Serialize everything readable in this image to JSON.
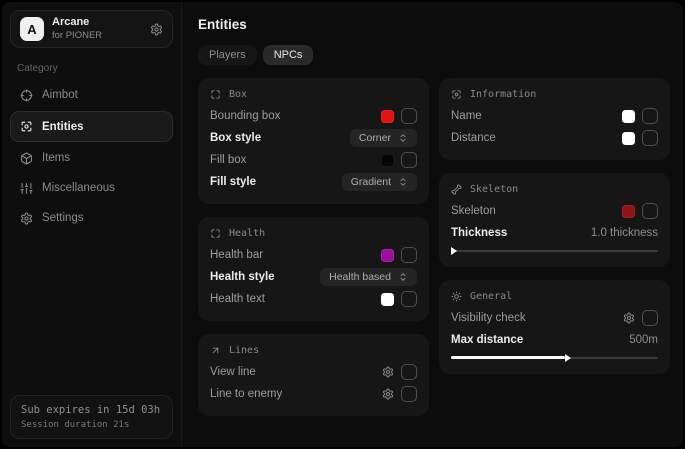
{
  "sidebar": {
    "brand": {
      "logo_letter": "A",
      "title": "Arcane",
      "subtitle": "for PIONER"
    },
    "category_label": "Category",
    "items": [
      {
        "label": "Aimbot"
      },
      {
        "label": "Entities"
      },
      {
        "label": "Items"
      },
      {
        "label": "Miscellaneous"
      },
      {
        "label": "Settings"
      }
    ],
    "footer": {
      "line1": "Sub expires in 15d 03h",
      "line2": "Session duration 21s"
    }
  },
  "main": {
    "title": "Entities",
    "tabs": [
      {
        "label": "Players"
      },
      {
        "label": "NPCs"
      }
    ],
    "cards": {
      "box": {
        "title": "Box",
        "rows": [
          {
            "label": "Bounding box",
            "color": "#e31111",
            "checked": false
          },
          {
            "label": "Box style",
            "value": "Corner"
          },
          {
            "label": "Fill box",
            "color": "#050505",
            "checked": false
          },
          {
            "label": "Fill style",
            "value": "Gradient"
          }
        ]
      },
      "health": {
        "title": "Health",
        "rows": [
          {
            "label": "Health bar",
            "color": "#9c0f9c",
            "checked": false
          },
          {
            "label": "Health style",
            "value": "Health based"
          },
          {
            "label": "Health text",
            "color": "#ffffff",
            "checked": false
          }
        ]
      },
      "lines": {
        "title": "Lines",
        "rows": [
          {
            "label": "View line",
            "checked": false
          },
          {
            "label": "Line to enemy",
            "checked": false
          }
        ]
      },
      "information": {
        "title": "Information",
        "rows": [
          {
            "label": "Name",
            "color": "#ffffff",
            "checked": false
          },
          {
            "label": "Distance",
            "color": "#ffffff",
            "checked": false
          }
        ]
      },
      "skeleton": {
        "title": "Skeleton",
        "rows": [
          {
            "label": "Skeleton",
            "color": "#8e1414",
            "checked": false
          }
        ],
        "slider": {
          "label": "Thickness",
          "value": "1.0 thickness",
          "fill_pct": 0
        }
      },
      "general": {
        "title": "General",
        "rows": [
          {
            "label": "Visibility check",
            "checked": false
          }
        ],
        "slider": {
          "label": "Max distance",
          "value": "500m",
          "fill_pct": 55
        }
      }
    }
  }
}
